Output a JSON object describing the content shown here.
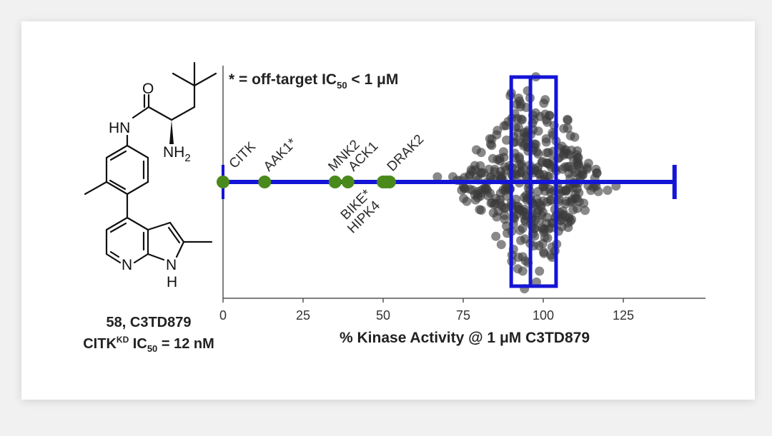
{
  "compound": {
    "line1": "58, C3TD879",
    "line2_prefix": "CITK",
    "line2_sup": "KD",
    "line2_mid": " IC",
    "line2_sub": "50",
    "line2_suffix": " = 12 nM",
    "atoms": {
      "O": "O",
      "HN": "HN",
      "NH": "NH",
      "NH_sub": "2",
      "N": "N",
      "H": "H"
    }
  },
  "annotation": {
    "prefix": "* = off-target IC",
    "sub": "50",
    "suffix": " < 1 μM"
  },
  "colors": {
    "axis_line": "#1414d6",
    "box": "#1414d6",
    "highlight_points": "#4a8a1c",
    "highlight_label": "#5a9e1e",
    "cloud_points": "#3a3a3a",
    "label_text": "#2b2b2b"
  },
  "chart_data": {
    "type": "scatter",
    "xlabel": "% Kinase Activity @ 1 μM C3TD879",
    "xlim": [
      0,
      150
    ],
    "xticks": [
      0,
      25,
      50,
      75,
      100,
      125
    ],
    "whisker_range": [
      0,
      141
    ],
    "box": {
      "q1": 90,
      "median": 96,
      "q3": 104
    },
    "highlighted_kinases": [
      {
        "name": "CITK",
        "value": 0
      },
      {
        "name": "AAK1*",
        "value": 13
      },
      {
        "name": "MNK2",
        "value": 35
      },
      {
        "name": "ACK1",
        "value": 39
      },
      {
        "name": "DRAK2",
        "value": 52
      },
      {
        "name": "BIKE*",
        "value": 50
      },
      {
        "name": "HIPK4",
        "value": 51
      }
    ],
    "distribution_note": "approx. 400 kinases, beeswarm, majority between 70 and 125"
  }
}
